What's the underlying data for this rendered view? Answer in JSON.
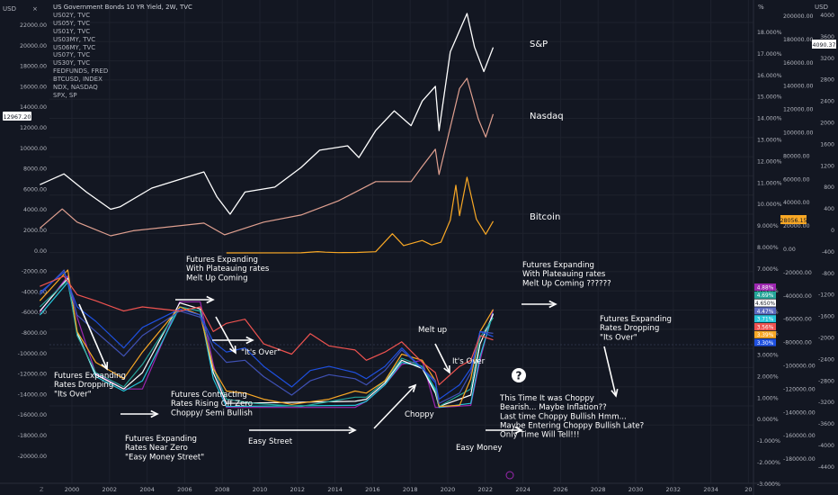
{
  "chart_data": {
    "type": "line",
    "title": "US Government Bonds 10 YR Yield, 2W, TVC",
    "legend_entries": [
      "US02Y, TVC",
      "US05Y, TVC",
      "US01Y, TVC",
      "US03MY, TVC",
      "US06MY, TVC",
      "US07Y, TVC",
      "US30Y, TVC",
      "FEDFUNDS, FRED",
      "BTCUSD, INDEX",
      "NDX, NASDAQ",
      "SPX, SP"
    ],
    "x_ticks": [
      "2000",
      "2002",
      "2004",
      "2006",
      "2008",
      "2010",
      "2012",
      "2014",
      "2016",
      "2018",
      "2020",
      "2022",
      "2024",
      "2026",
      "2028",
      "2030",
      "2032",
      "2034",
      "20"
    ],
    "x_range": [
      1999.0,
      2035.4
    ],
    "axes": {
      "left1": {
        "unit": "USD",
        "ticks": [
          "22000.00",
          "20000.00",
          "18000.00",
          "16000.00",
          "14000.00",
          "12000.00",
          "10000.00",
          "8000.00",
          "6000.00",
          "4000.00",
          "2000.00",
          "0.00",
          "-2000.00",
          "-4000.00",
          "-6000.00",
          "-8000.00",
          "-10000.00",
          "-12000.00",
          "-14000.00",
          "-16000.00",
          "-18000.00",
          "-20000.00"
        ],
        "highlight": "12967.20"
      },
      "right_pct": {
        "unit": "%",
        "ticks": [
          "18.000%",
          "17.000%",
          "16.000%",
          "15.000%",
          "14.000%",
          "13.000%",
          "12.000%",
          "11.000%",
          "10.000%",
          "9.000%",
          "8.000%",
          "7.000%",
          "6.000%",
          "5.000%",
          "4.000%",
          "3.000%",
          "2.000%",
          "1.000%",
          "0.000%",
          "-1.000%",
          "-2.000%",
          "-3.000%"
        ]
      },
      "right_btc": {
        "ticks": [
          "200000.00",
          "180000.00",
          "160000.00",
          "140000.00",
          "120000.00",
          "100000.00",
          "80000.00",
          "60000.00",
          "40000.00",
          "20000.00",
          "0.00",
          "-20000.00",
          "-40000.00",
          "-60000.00",
          "-80000.00",
          "-100000.00",
          "-120000.00",
          "-140000.00",
          "-160000.00",
          "-180000.00"
        ],
        "highlight": "28056.15"
      },
      "right_usd": {
        "unit": "USD",
        "ticks": [
          "4000",
          "3600",
          "3200",
          "2800",
          "2400",
          "2000",
          "1600",
          "1200",
          "800",
          "400",
          "0",
          "-400",
          "-800",
          "-1200",
          "-1600",
          "-2000",
          "-2400",
          "-2800",
          "-3200",
          "-3600",
          "-4000",
          "-4400"
        ],
        "highlight": "4090.37"
      }
    },
    "yield_badges": [
      {
        "text": "4.88%",
        "color": "#9c27b0"
      },
      {
        "text": "4.69%",
        "color": "#26a69a"
      },
      {
        "text": "4.650%",
        "color": "#ffffff"
      },
      {
        "text": "4.47%",
        "color": "#5c6bc0"
      },
      {
        "text": "3.71%",
        "color": "#26c6da"
      },
      {
        "text": "3.56%",
        "color": "#ef5350"
      },
      {
        "text": "3.39%",
        "color": "#f9a825"
      },
      {
        "text": "3.30%",
        "color": "#1e50e0"
      }
    ],
    "series": [
      {
        "name": "SPX, SP",
        "color": "#ffffff",
        "x": [
          1999.0,
          2000.3,
          2001.5,
          2002.8,
          2003.3,
          2005,
          2007.8,
          2008.5,
          2009.2,
          2010,
          2011.6,
          2013,
          2014,
          2015.5,
          2016.1,
          2017,
          2018,
          2018.9,
          2019.5,
          2020.2,
          2020.4,
          2021,
          2021.9,
          2022.3,
          2022.8,
          2023.3
        ],
        "y": [
          1300,
          1520,
          1150,
          800,
          850,
          1230,
          1560,
          1050,
          700,
          1150,
          1250,
          1650,
          2000,
          2090,
          1850,
          2400,
          2800,
          2500,
          3000,
          3300,
          2400,
          4000,
          4780,
          4100,
          3600,
          4090
        ]
      },
      {
        "name": "NDX, NASDAQ",
        "color": "#e0a090",
        "x": [
          1999.0,
          2000.2,
          2001,
          2002.8,
          2004,
          2007.8,
          2008.9,
          2011,
          2013,
          2015,
          2017,
          2018.9,
          2019.5,
          2020.2,
          2020.4,
          2021.5,
          2021.9,
          2022.5,
          2022.9,
          2023.3
        ],
        "y": [
          1700,
          3600,
          2300,
          950,
          1450,
          2200,
          1050,
          2300,
          3000,
          4400,
          6300,
          6300,
          7800,
          9500,
          7000,
          15500,
          16500,
          12500,
          10700,
          12967
        ]
      },
      {
        "name": "BTCUSD, INDEX",
        "color": "#f9a825",
        "x": [
          2009.0,
          2013.0,
          2013.9,
          2014.3,
          2015,
          2016,
          2017,
          2017.9,
          2018.5,
          2019.5,
          2020.0,
          2020.5,
          2021.0,
          2021.3,
          2021.5,
          2021.9,
          2022.4,
          2022.9,
          2023.3
        ],
        "y": [
          0,
          100,
          1100,
          600,
          250,
          400,
          1000,
          17000,
          6500,
          11000,
          7000,
          9500,
          29000,
          60000,
          33000,
          67000,
          30000,
          16500,
          28056
        ]
      },
      {
        "name": "FEDFUNDS, FRED",
        "color": "#9c27b0",
        "x": [
          1999.0,
          2000.5,
          2001,
          2002,
          2003.5,
          2004.5,
          2006.5,
          2007.6,
          2008.3,
          2009,
          2015.9,
          2016.5,
          2017.5,
          2018.4,
          2019.5,
          2020.2,
          2020.4,
          2022.1,
          2022.6,
          2023.3
        ],
        "y": [
          4.75,
          6.5,
          4.5,
          1.75,
          1.0,
          1.0,
          5.25,
          5.25,
          2.2,
          0.1,
          0.1,
          0.4,
          1.2,
          2.2,
          2.4,
          0.1,
          0.1,
          0.2,
          2.4,
          4.88
        ]
      },
      {
        "name": "US03MY, TVC",
        "color": "#26c6da",
        "x": [
          1999.0,
          2000.5,
          2001,
          2002,
          2003.5,
          2004.5,
          2006.5,
          2007.6,
          2008.3,
          2009,
          2015.9,
          2016.5,
          2017.5,
          2018.4,
          2019.5,
          2020.2,
          2020.4,
          2022.1,
          2022.6,
          2023.3
        ],
        "y": [
          4.6,
          6.2,
          3.8,
          1.6,
          0.9,
          1.4,
          5.0,
          4.8,
          1.5,
          0.15,
          0.2,
          0.4,
          1.2,
          2.3,
          2.1,
          0.9,
          0.1,
          0.3,
          2.6,
          4.69
        ]
      },
      {
        "name": "US06MY, TVC",
        "color": "#ffffff",
        "x": [
          1999.0,
          2000.5,
          2001,
          2002,
          2003.5,
          2004.5,
          2006.5,
          2007.6,
          2008.3,
          2009,
          2015.9,
          2016.5,
          2017.5,
          2018.4,
          2019.5,
          2020.2,
          2020.4,
          2022.1,
          2022.6,
          2023.3
        ],
        "y": [
          4.8,
          6.4,
          3.7,
          1.7,
          1.0,
          1.8,
          5.2,
          4.9,
          1.8,
          0.3,
          0.4,
          0.5,
          1.3,
          2.4,
          2.0,
          0.8,
          0.15,
          0.7,
          3.2,
          4.65
        ]
      },
      {
        "name": "US01Y, TVC",
        "color": "#26a69a",
        "x": [
          1999.0,
          2000.5,
          2001,
          2002,
          2003.5,
          2004.5,
          2006.5,
          2007.6,
          2008.3,
          2009,
          2010.5,
          2013,
          2015.9,
          2016.5,
          2017.5,
          2018.4,
          2019.5,
          2020.2,
          2020.4,
          2022.1,
          2022.6,
          2023.3
        ],
        "y": [
          5.0,
          6.3,
          3.6,
          1.8,
          1.1,
          2.2,
          5.0,
          4.8,
          2.0,
          0.5,
          0.3,
          0.15,
          0.6,
          0.6,
          1.4,
          2.5,
          2.1,
          1.0,
          0.15,
          1.0,
          3.5,
          4.47
        ]
      },
      {
        "name": "US02Y, TVC",
        "color": "#f9a825",
        "x": [
          1999.0,
          2000.5,
          2001,
          2002,
          2003.5,
          2004.5,
          2006.5,
          2007.6,
          2008.3,
          2009,
          2010,
          2011,
          2012.5,
          2014.5,
          2015.9,
          2016.5,
          2017.5,
          2018.4,
          2019.5,
          2020.2,
          2020.4,
          2021.5,
          2022.1,
          2022.6,
          2023.3
        ],
        "y": [
          5.3,
          6.8,
          3.8,
          2.3,
          1.5,
          2.8,
          5.0,
          4.6,
          2.0,
          0.9,
          0.8,
          0.5,
          0.25,
          0.5,
          0.9,
          0.8,
          1.4,
          2.7,
          2.4,
          1.4,
          0.15,
          0.2,
          1.5,
          3.8,
          4.88
        ]
      },
      {
        "name": "US05Y, TVC",
        "color": "#3f51b5",
        "x": [
          1999.0,
          2000.3,
          2001,
          2002,
          2003.5,
          2004.5,
          2006.5,
          2007.6,
          2008.3,
          2009,
          2010,
          2011,
          2012.5,
          2013.5,
          2014.5,
          2015.9,
          2016.5,
          2017.5,
          2018.4,
          2019.5,
          2020.2,
          2020.4,
          2021.5,
          2022.1,
          2022.6,
          2023.3
        ],
        "y": [
          5.6,
          6.8,
          4.6,
          3.8,
          2.6,
          3.6,
          4.8,
          4.5,
          3.0,
          2.3,
          2.4,
          1.6,
          0.7,
          1.4,
          1.7,
          1.5,
          1.2,
          1.9,
          2.9,
          2.0,
          1.4,
          0.3,
          0.8,
          1.8,
          3.8,
          3.71
        ]
      },
      {
        "name": "US07Y, TVC",
        "color": "#1e50e0",
        "x": [
          1999.0,
          2000.3,
          2001,
          2002,
          2003.5,
          2004.5,
          2006.5,
          2007.6,
          2008.3,
          2009,
          2010,
          2011,
          2012.5,
          2013.5,
          2014.5,
          2015.9,
          2016.5,
          2017.5,
          2018.4,
          2019.5,
          2020.2,
          2020.4,
          2021.5,
          2022.1,
          2022.6,
          2023.3
        ],
        "y": [
          5.7,
          6.7,
          5.0,
          4.3,
          3.0,
          4.0,
          4.9,
          4.6,
          3.3,
          2.8,
          3.0,
          2.1,
          1.1,
          1.9,
          2.1,
          1.8,
          1.5,
          2.1,
          3.0,
          2.0,
          1.3,
          0.5,
          1.2,
          2.0,
          3.8,
          3.56
        ]
      },
      {
        "name": "US30Y, TVC",
        "color": "#ef5350",
        "x": [
          1999.0,
          2000.3,
          2001,
          2002,
          2003.5,
          2004.5,
          2006.5,
          2007.6,
          2008.3,
          2009,
          2010,
          2011,
          2012.5,
          2013.5,
          2014.5,
          2015.9,
          2016.5,
          2017.5,
          2018.4,
          2019.5,
          2020.2,
          2020.4,
          2021.5,
          2022.1,
          2022.6,
          2023.3
        ],
        "y": [
          6.0,
          6.5,
          5.6,
          5.3,
          4.8,
          5.0,
          4.8,
          5.0,
          3.8,
          4.2,
          4.4,
          3.2,
          2.7,
          3.7,
          3.1,
          2.9,
          2.4,
          2.8,
          3.3,
          2.3,
          1.8,
          1.2,
          2.1,
          2.4,
          3.6,
          3.39
        ]
      }
    ],
    "annotations": [
      {
        "id": "sp",
        "text": "S&P"
      },
      {
        "id": "nasdaq",
        "text": "Nasdaq"
      },
      {
        "id": "bitcoin",
        "text": "Bitcoin"
      },
      {
        "id": "a1",
        "text": "Futures Expanding\nRates Dropping\n\"Its Over\""
      },
      {
        "id": "a2",
        "text": "Futures Expanding\nRates Near Zero\n\"Easy Money Street\""
      },
      {
        "id": "a3",
        "text": "Futures Expanding\nWith Plateauing rates\nMelt Up Coming"
      },
      {
        "id": "a4",
        "text": "Futures Contracting\nRates Rising Off Zero\nChoppy/ Semi Bullish"
      },
      {
        "id": "a5",
        "text": "\"It's Over\""
      },
      {
        "id": "a6",
        "text": "Easy Street"
      },
      {
        "id": "a7",
        "text": "Choppy"
      },
      {
        "id": "a8",
        "text": "Melt up"
      },
      {
        "id": "a9",
        "text": "It's Over"
      },
      {
        "id": "a10",
        "text": "Easy Money"
      },
      {
        "id": "a11",
        "text": "Futures Expanding\nWith Plateauing rates\nMelt Up Coming ??????"
      },
      {
        "id": "a12",
        "text": "Futures Expanding\nRates Dropping\n\"Its Over\""
      },
      {
        "id": "a13",
        "text": "This Time It was Choppy\nBearish... Maybe Inflation??\nLast time Choppy Bullish Hmm...\nMaybe Entering Choppy Bullish Late?\nOnly Time Will Tell!!!"
      },
      {
        "id": "q",
        "text": "?"
      }
    ]
  }
}
